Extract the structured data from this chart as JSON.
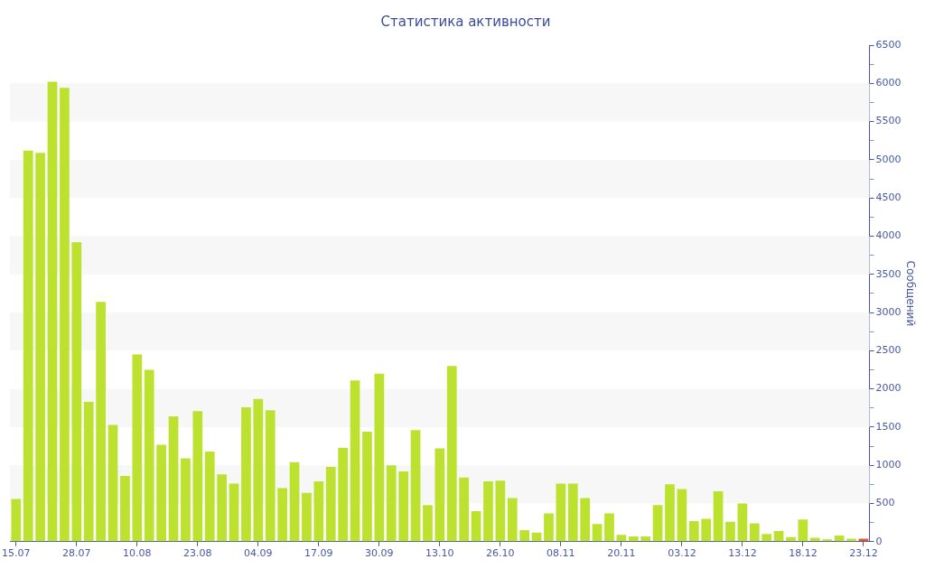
{
  "chart_data": {
    "type": "bar",
    "title": "Статистика активности",
    "ylabel": "Сообщений",
    "categories": [
      "15.07",
      null,
      null,
      null,
      null,
      "28.07",
      null,
      null,
      null,
      null,
      "10.08",
      null,
      null,
      null,
      null,
      "23.08",
      null,
      null,
      null,
      null,
      "04.09",
      null,
      null,
      null,
      null,
      "17.09",
      null,
      null,
      null,
      null,
      "30.09",
      null,
      null,
      null,
      null,
      "13.10",
      null,
      null,
      null,
      null,
      "26.10",
      null,
      null,
      null,
      null,
      "08.11",
      null,
      null,
      null,
      null,
      "20.11",
      null,
      null,
      null,
      null,
      "03.12",
      null,
      null,
      null,
      null,
      "13.12",
      null,
      null,
      null,
      null,
      "18.12",
      null,
      null,
      null,
      null,
      "23.12"
    ],
    "values": [
      560,
      5120,
      5090,
      6020,
      5940,
      3920,
      1830,
      3140,
      1530,
      860,
      2450,
      2250,
      1270,
      1640,
      1090,
      1710,
      1180,
      880,
      760,
      1760,
      1870,
      1720,
      700,
      1040,
      640,
      790,
      980,
      1230,
      2110,
      1440,
      2200,
      1000,
      920,
      1460,
      480,
      1220,
      2300,
      840,
      400,
      790,
      800,
      570,
      150,
      120,
      370,
      760,
      760,
      570,
      230,
      370,
      90,
      70,
      70,
      480,
      750,
      690,
      270,
      300,
      660,
      260,
      500,
      240,
      100,
      140,
      60,
      290,
      50,
      30,
      80,
      40,
      40
    ],
    "colors": [
      "#bde12f",
      "#bde12f",
      "#bde12f",
      "#bde12f",
      "#bde12f",
      "#bde12f",
      "#bde12f",
      "#bde12f",
      "#bde12f",
      "#bde12f",
      "#bde12f",
      "#bde12f",
      "#bde12f",
      "#bde12f",
      "#bde12f",
      "#bde12f",
      "#bde12f",
      "#bde12f",
      "#bde12f",
      "#bde12f",
      "#bde12f",
      "#bde12f",
      "#bde12f",
      "#bde12f",
      "#bde12f",
      "#bde12f",
      "#bde12f",
      "#bde12f",
      "#bde12f",
      "#bde12f",
      "#bde12f",
      "#bde12f",
      "#bde12f",
      "#bde12f",
      "#bde12f",
      "#bde12f",
      "#bde12f",
      "#bde12f",
      "#bde12f",
      "#bde12f",
      "#bde12f",
      "#bde12f",
      "#bde12f",
      "#bde12f",
      "#bde12f",
      "#bde12f",
      "#bde12f",
      "#bde12f",
      "#bde12f",
      "#bde12f",
      "#bde12f",
      "#bde12f",
      "#bde12f",
      "#bde12f",
      "#bde12f",
      "#bde12f",
      "#bde12f",
      "#bde12f",
      "#bde12f",
      "#bde12f",
      "#bde12f",
      "#bde12f",
      "#bde12f",
      "#bde12f",
      "#bde12f",
      "#bde12f",
      "#bde12f",
      "#bde12f",
      "#bde12f",
      "#bde12f",
      "#e0582b"
    ],
    "ylim": [
      0,
      6500
    ],
    "yticks": [
      0,
      {
        "value": 250,
        "label": null
      },
      500,
      {
        "value": 750,
        "label": null
      },
      1000,
      {
        "value": 1250,
        "label": null
      },
      1500,
      {
        "value": 1750,
        "label": null
      },
      2000,
      {
        "value": 2250,
        "label": null
      },
      2500,
      {
        "value": 2750,
        "label": null
      },
      3000,
      {
        "value": 3250,
        "label": null
      },
      3500,
      {
        "value": 3750,
        "label": null
      },
      4000,
      {
        "value": 4250,
        "label": null
      },
      4500,
      {
        "value": 4750,
        "label": null
      },
      5000,
      {
        "value": 5250,
        "label": null
      },
      5500,
      {
        "value": 5750,
        "label": null
      },
      6000,
      {
        "value": 6250,
        "label": null
      },
      6500
    ],
    "bands": [
      {
        "axis": "y",
        "from": 500,
        "to": 1000,
        "color": "#f7f7f7"
      },
      {
        "axis": "y",
        "from": 1500,
        "to": 2000,
        "color": "#f7f7f7"
      },
      {
        "axis": "y",
        "from": 2500,
        "to": 3000,
        "color": "#f7f7f7"
      },
      {
        "axis": "y",
        "from": 3500,
        "to": 4000,
        "color": "#f7f7f7"
      },
      {
        "axis": "y",
        "from": 4500,
        "to": 5000,
        "color": "#f7f7f7"
      },
      {
        "axis": "y",
        "from": 5500,
        "to": 6000,
        "color": "#f7f7f7"
      }
    ],
    "legend": false
  }
}
